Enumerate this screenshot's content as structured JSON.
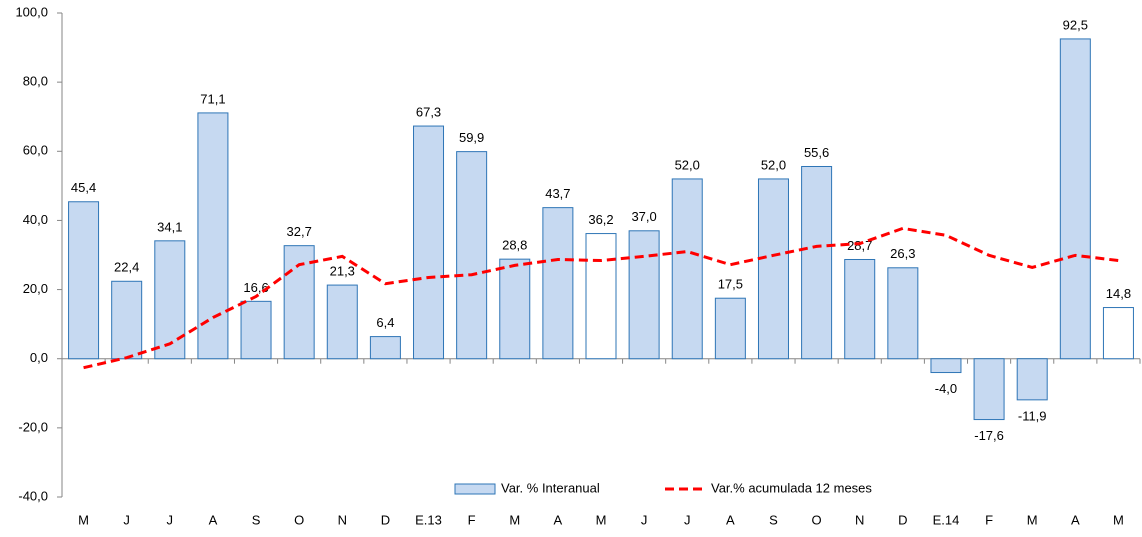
{
  "chart_data": {
    "type": "bar_line",
    "categories": [
      "M",
      "J",
      "J",
      "A",
      "S",
      "O",
      "N",
      "D",
      "E.13",
      "F",
      "M",
      "A",
      "M",
      "J",
      "J",
      "A",
      "S",
      "O",
      "N",
      "D",
      "E.14",
      "F",
      "M",
      "A",
      "M"
    ],
    "series": [
      {
        "name": "Var. % Interanual",
        "type": "bar",
        "color": "#c6d9f1",
        "edge_color": "#2e75b6",
        "colors": [
          "#c6d9f1",
          "#c6d9f1",
          "#c6d9f1",
          "#c6d9f1",
          "#c6d9f1",
          "#c6d9f1",
          "#c6d9f1",
          "#c6d9f1",
          "#c6d9f1",
          "#c6d9f1",
          "#c6d9f1",
          "#c6d9f1",
          "#ffffff",
          "#c6d9f1",
          "#c6d9f1",
          "#c6d9f1",
          "#c6d9f1",
          "#c6d9f1",
          "#c6d9f1",
          "#c6d9f1",
          "#c6d9f1",
          "#c6d9f1",
          "#c6d9f1",
          "#c6d9f1",
          "#ffffff"
        ],
        "values": [
          45.4,
          22.4,
          34.1,
          71.1,
          16.6,
          32.7,
          21.3,
          6.4,
          67.3,
          59.9,
          28.8,
          43.7,
          36.2,
          37.0,
          52.0,
          17.5,
          52.0,
          55.6,
          28.7,
          26.3,
          -4.0,
          -17.6,
          -11.9,
          92.5,
          14.8
        ],
        "value_labels": [
          "45,4",
          "22,4",
          "34,1",
          "71,1",
          "16,6",
          "32,7",
          "21,3",
          "6,4",
          "67,3",
          "59,9",
          "28,8",
          "43,7",
          "36,2",
          "37,0",
          "52,0",
          "17,5",
          "52,0",
          "55,6",
          "28,7",
          "26,3",
          "-4,0",
          "-17,6",
          "-11,9",
          "92,5",
          "14,8"
        ]
      },
      {
        "name": "Var.% acumulada 12 meses",
        "type": "line",
        "color": "#ff0000",
        "dashed": true,
        "values": [
          -2.6,
          0.3,
          4.3,
          11.9,
          18.0,
          27.2,
          29.6,
          21.7,
          23.5,
          24.3,
          27.0,
          28.7,
          28.4,
          29.6,
          31.0,
          27.2,
          29.9,
          32.5,
          33.3,
          37.7,
          35.7,
          29.9,
          26.4,
          29.9,
          28.4
        ]
      }
    ],
    "ylim": [
      -40,
      100
    ],
    "yticks": [
      {
        "value": -40,
        "label": "-40,0"
      },
      {
        "value": -20,
        "label": "-20,0"
      },
      {
        "value": 0,
        "label": "0,0"
      },
      {
        "value": 20,
        "label": "20,0"
      },
      {
        "value": 40,
        "label": "40,0"
      },
      {
        "value": 60,
        "label": "60,0"
      },
      {
        "value": 80,
        "label": "80,0"
      },
      {
        "value": 100,
        "label": "100,0"
      }
    ],
    "grid": false,
    "legend": "bottom"
  }
}
